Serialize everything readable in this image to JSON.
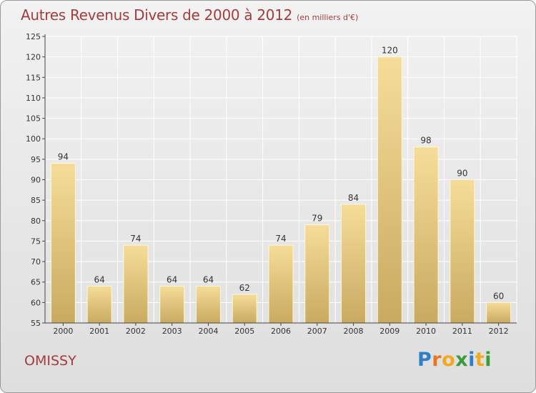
{
  "header": {
    "title": "Autres Revenus Divers de 2000 à 2012",
    "subtitle": "(en milliers d'€)"
  },
  "footer": {
    "location": "OMISSY",
    "logo_text": "Proxiti"
  },
  "colors": {
    "title": "#a33c3c",
    "bar_top": "#f5dd99",
    "bar_bottom": "#c9aa60",
    "grid": "#ffffff"
  },
  "chart_data": {
    "type": "bar",
    "title": "Autres Revenus Divers de 2000 à 2012",
    "subtitle": "(en milliers d'€)",
    "xlabel": "",
    "ylabel": "",
    "categories": [
      "2000",
      "2001",
      "2002",
      "2003",
      "2004",
      "2005",
      "2006",
      "2007",
      "2008",
      "2009",
      "2010",
      "2011",
      "2012"
    ],
    "values": [
      94,
      64,
      74,
      64,
      64,
      62,
      74,
      79,
      84,
      120,
      98,
      90,
      60
    ],
    "ylim": [
      55,
      125
    ],
    "yticks": [
      55,
      60,
      65,
      70,
      75,
      80,
      85,
      90,
      95,
      100,
      105,
      110,
      115,
      120,
      125
    ],
    "grid": true,
    "data_labels": true
  }
}
